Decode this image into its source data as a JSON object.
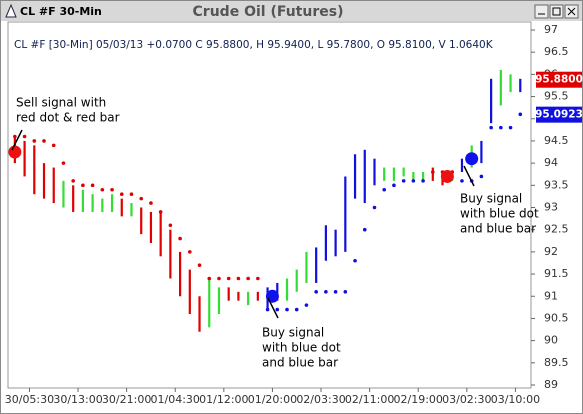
{
  "chart_data": {
    "type": "ohlc",
    "window_title": "CL #F 30-Min",
    "title": "Crude Oil (Futures)",
    "info": "CL #F [30-Min] 05/03/13 +0.0700 C 95.8800, H 95.9400, L 95.7800, O 95.8100, V 1.0640K",
    "ylim": [
      89,
      97
    ],
    "yticks": [
      89,
      89.5,
      90,
      90.5,
      91,
      91.5,
      92,
      92.5,
      93,
      93.5,
      94,
      94.5,
      95,
      95.5,
      96,
      96.5,
      97
    ],
    "xlim": [
      -1,
      106
    ],
    "xticks": [
      {
        "value": 3,
        "label": "30/05:30"
      },
      {
        "value": 13,
        "label": "30/13:00"
      },
      {
        "value": 23,
        "label": "30/21:00"
      },
      {
        "value": 33,
        "label": "01/04:30"
      },
      {
        "value": 43,
        "label": "01/12:00"
      },
      {
        "value": 53,
        "label": "01/20:00"
      },
      {
        "value": 63,
        "label": "02/03:30"
      },
      {
        "value": 73,
        "label": "02/11:00"
      },
      {
        "value": 83,
        "label": "02/19:00"
      },
      {
        "value": 93,
        "label": "03/02:30"
      },
      {
        "value": 103,
        "label": "03/10:00"
      }
    ],
    "bars": {
      "x": [
        0,
        2,
        4,
        6,
        8,
        10,
        12,
        14,
        16,
        18,
        20,
        22,
        24,
        26,
        28,
        30,
        32,
        34,
        36,
        38,
        40,
        42,
        44,
        46,
        48,
        50,
        52,
        54,
        56,
        58,
        60,
        62,
        64,
        66,
        68,
        70,
        72,
        74,
        76,
        78,
        80,
        82,
        84,
        86,
        88,
        90,
        92,
        94,
        96,
        98,
        100,
        102,
        104
      ],
      "high": [
        94.6,
        94.5,
        94.4,
        94.0,
        93.9,
        93.6,
        93.5,
        93.4,
        93.3,
        93.2,
        93.3,
        93.2,
        93.1,
        93.0,
        92.9,
        92.9,
        92.5,
        92.0,
        91.6,
        91.0,
        91.4,
        91.2,
        91.2,
        91.1,
        91.1,
        91.1,
        91.2,
        91.3,
        91.4,
        91.6,
        92.0,
        92.1,
        92.6,
        92.5,
        93.7,
        94.2,
        94.3,
        94.1,
        93.9,
        93.9,
        93.9,
        93.8,
        93.8,
        93.9,
        93.8,
        93.8,
        94.1,
        94.4,
        94.5,
        95.9,
        96.1,
        96.0,
        95.9
      ],
      "low": [
        94.0,
        93.7,
        93.3,
        93.2,
        93.1,
        93.0,
        92.9,
        92.9,
        92.9,
        92.9,
        92.9,
        92.8,
        92.8,
        92.4,
        92.2,
        91.9,
        91.4,
        91.0,
        90.6,
        90.2,
        90.3,
        90.6,
        90.9,
        90.9,
        90.8,
        90.9,
        90.7,
        90.9,
        90.9,
        91.1,
        91.3,
        91.3,
        91.8,
        91.9,
        92.0,
        93.2,
        93.1,
        93.5,
        93.6,
        93.6,
        93.7,
        93.6,
        93.6,
        93.6,
        93.5,
        93.6,
        93.8,
        93.9,
        94.0,
        94.9,
        95.3,
        95.6,
        95.6
      ],
      "colors": [
        "#e00000",
        "#e00000",
        "#e00000",
        "#e00000",
        "#e00000",
        "#33dd33",
        "#e00000",
        "#33dd33",
        "#33dd33",
        "#33dd33",
        "#33dd33",
        "#e00000",
        "#33dd33",
        "#e00000",
        "#e00000",
        "#e00000",
        "#e00000",
        "#e00000",
        "#e00000",
        "#e00000",
        "#33dd33",
        "#33dd33",
        "#e00000",
        "#e00000",
        "#33dd33",
        "#e00000",
        "#1010e0",
        "#1010e0",
        "#33dd33",
        "#33dd33",
        "#33dd33",
        "#1010e0",
        "#1010e0",
        "#1010e0",
        "#1010e0",
        "#1010e0",
        "#1010e0",
        "#1010e0",
        "#33dd33",
        "#33dd33",
        "#33dd33",
        "#33dd33",
        "#33dd33",
        "#e00000",
        "#e00000",
        "#33dd33",
        "#1010e0",
        "#33dd33",
        "#1010e0",
        "#1010e0",
        "#33dd33",
        "#33dd33",
        "#1010e0"
      ]
    },
    "dots": [
      {
        "color": "#e00000",
        "x": [
          0,
          2,
          4,
          6,
          8,
          10,
          12,
          14,
          16,
          18,
          20,
          22,
          24,
          26,
          28,
          30,
          32,
          34,
          36,
          38,
          40,
          42,
          44,
          46,
          48,
          50,
          86,
          88,
          90
        ],
        "values": [
          94.6,
          94.6,
          94.5,
          94.5,
          94.4,
          94.0,
          93.6,
          93.5,
          93.5,
          93.4,
          93.4,
          93.3,
          93.3,
          93.2,
          93.1,
          92.9,
          92.6,
          92.3,
          92.0,
          91.7,
          91.4,
          91.4,
          91.4,
          91.4,
          91.4,
          91.4,
          93.8,
          93.8,
          93.8
        ]
      },
      {
        "color": "#1010e0",
        "x": [
          52,
          54,
          56,
          58,
          60,
          62,
          64,
          66,
          68,
          70,
          72,
          74,
          76,
          78,
          80,
          82,
          84,
          92,
          94,
          96,
          98,
          100,
          102,
          104
        ],
        "values": [
          90.7,
          90.7,
          90.7,
          90.7,
          90.8,
          91.1,
          91.1,
          91.1,
          91.1,
          91.8,
          92.5,
          93.0,
          93.4,
          93.5,
          93.6,
          93.6,
          93.6,
          93.6,
          93.6,
          93.7,
          94.8,
          94.8,
          94.8,
          95.1
        ]
      }
    ],
    "signals": [
      {
        "color": "#ee1111",
        "x": 0,
        "value": 94.25
      },
      {
        "color": "#1111ee",
        "x": 53,
        "value": 91.0
      },
      {
        "color": "#ee1111",
        "x": 89,
        "value": 93.7
      },
      {
        "color": "#1111ee",
        "x": 94,
        "value": 94.1
      }
    ],
    "annotations": [
      {
        "lines": [
          "Sell signal with",
          "red dot & red bar"
        ]
      },
      {
        "lines": [
          "Buy signal",
          "with blue dot",
          "and blue bar"
        ]
      },
      {
        "lines": [
          "Buy signal",
          "with blue dot",
          "and blue bar"
        ]
      }
    ],
    "price_labels": [
      {
        "value": 95.88,
        "label": "95.8800",
        "color": "#e00000"
      },
      {
        "value": 95.0923,
        "label": "95.0923",
        "color": "#1010e0"
      }
    ]
  }
}
